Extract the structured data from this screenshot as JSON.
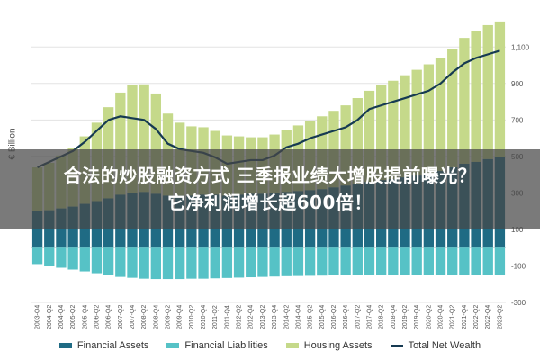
{
  "chart_data": {
    "type": "area",
    "title": "",
    "ylabel": "€ Billion",
    "ylim": [
      -300,
      1200
    ],
    "y_ticks": [
      -300,
      -100,
      100,
      300,
      500,
      700,
      900,
      1100
    ],
    "y_tick_labels": [
      "-300",
      "-100",
      "100",
      "300",
      "500",
      "700",
      "900",
      "1,100"
    ],
    "grid": true,
    "legend_position": "bottom",
    "x": [
      "2003-Q4",
      "2004-Q2",
      "2004-Q4",
      "2005-Q2",
      "2005-Q4",
      "2006-Q2",
      "2006-Q4",
      "2007-Q2",
      "2007-Q4",
      "2008-Q2",
      "2008-Q4",
      "2009-Q2",
      "2009-Q4",
      "2010-Q2",
      "2010-Q4",
      "2011-Q2",
      "2011-Q4",
      "2012-Q2",
      "2012-Q4",
      "2013-Q2",
      "2013-Q4",
      "2014-Q2",
      "2014-Q4",
      "2015-Q2",
      "2015-Q4",
      "2016-Q2",
      "2016-Q4",
      "2017-Q2",
      "2017-Q4",
      "2018-Q2",
      "2018-Q4",
      "2019-Q2",
      "2019-Q4",
      "2020-Q2",
      "2020-Q4",
      "2021-Q2",
      "2021-Q4",
      "2022-Q2",
      "2022-Q4",
      "2023-Q2"
    ],
    "series": [
      {
        "name": "Financial Assets",
        "kind": "area",
        "color": "#1f6b84",
        "values": [
          200,
          205,
          215,
          225,
          240,
          255,
          270,
          290,
          300,
          305,
          295,
          285,
          285,
          285,
          290,
          290,
          285,
          290,
          295,
          295,
          300,
          305,
          310,
          315,
          320,
          330,
          340,
          350,
          360,
          370,
          375,
          385,
          395,
          405,
          420,
          440,
          460,
          470,
          485,
          495
        ]
      },
      {
        "name": "Financial Liabilities",
        "kind": "area",
        "color": "#56c2c6",
        "values": [
          -90,
          -100,
          -110,
          -120,
          -130,
          -140,
          -150,
          -160,
          -165,
          -170,
          -172,
          -172,
          -172,
          -170,
          -170,
          -168,
          -166,
          -164,
          -162,
          -160,
          -158,
          -156,
          -155,
          -154,
          -153,
          -152,
          -152,
          -152,
          -152,
          -152,
          -152,
          -152,
          -152,
          -152,
          -152,
          -152,
          -152,
          -152,
          -152,
          -152
        ]
      },
      {
        "name": "Housing Assets",
        "kind": "area",
        "color": "#c5d98a",
        "values": [
          240,
          260,
          290,
          320,
          370,
          430,
          500,
          560,
          590,
          590,
          550,
          450,
          400,
          380,
          370,
          350,
          330,
          320,
          310,
          310,
          320,
          340,
          360,
          380,
          400,
          420,
          440,
          470,
          500,
          520,
          540,
          560,
          580,
          600,
          620,
          650,
          690,
          720,
          735,
          745
        ]
      },
      {
        "name": "Total Net Wealth",
        "kind": "line",
        "color": "#163a52",
        "values": [
          440,
          470,
          500,
          530,
          580,
          640,
          700,
          720,
          710,
          700,
          650,
          570,
          540,
          530,
          520,
          495,
          460,
          470,
          480,
          480,
          505,
          550,
          570,
          600,
          620,
          640,
          660,
          700,
          760,
          780,
          800,
          820,
          840,
          860,
          900,
          960,
          1010,
          1040,
          1060,
          1080
        ]
      }
    ]
  },
  "overlay": {
    "line1": "合法的炒股融资方式 三季报业绩大增股提前曝光？",
    "line2": "它净利润增长超600倍！"
  }
}
